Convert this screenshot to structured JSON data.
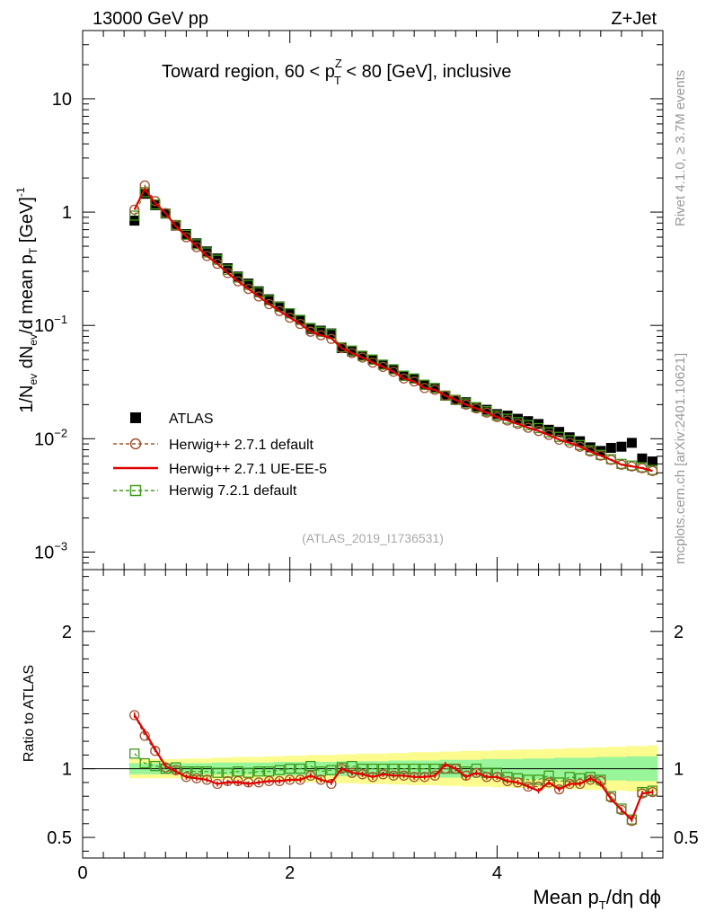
{
  "header": {
    "left": "13000 GeV pp",
    "right": "Z+Jet"
  },
  "plot_title": {
    "prefix": "Toward region, 60 < p",
    "sup": "Z",
    "sub": "T",
    "suffix": " < 80 [GeV], inclusive"
  },
  "ylabel_main": {
    "t1": "1/N",
    "s1": "ev",
    "t2": " dN",
    "s2": "ev",
    "t3": "/d mean p",
    "s3": "T",
    "t4": " [GeV]",
    "sup": "-1"
  },
  "ylabel_ratio": "Ratio to ATLAS",
  "xlabel": {
    "t1": "Mean p",
    "s1": "T",
    "t2": "/dη dϕ"
  },
  "side_labels": {
    "rivet": "Rivet 4.1.0, ≥ 3.7M events",
    "mcplots": "mcplots.cern.ch [arXiv:2401.10621]"
  },
  "watermark": "(ATLAS_2019_I1736531)",
  "colors": {
    "atlas": "#000000",
    "herwig271": "#a0522d",
    "ueee5": "#e00000",
    "herwig721": "#3c9a1a",
    "band_inner": "#99f599",
    "band_outer": "#fbfb8e"
  },
  "chart_data": {
    "type": "line",
    "main": {
      "yscale": "log",
      "xlim": [
        0,
        5.6
      ],
      "ylim": [
        0.0007,
        40
      ],
      "x_ticks": [
        0,
        2,
        4
      ],
      "x_tick_labels": [
        "0",
        "2",
        "4"
      ],
      "y_tick_labels": [
        {
          "base": "10",
          "exp": "",
          "value": 10
        },
        {
          "base": "1",
          "exp": "",
          "value": 1
        },
        {
          "base": "10",
          "exp": "−1",
          "value": 0.1
        },
        {
          "base": "10",
          "exp": "−2",
          "value": 0.01
        },
        {
          "base": "10",
          "exp": "−3",
          "value": 0.001
        }
      ],
      "x": [
        0.5,
        0.6,
        0.7,
        0.8,
        0.9,
        1.0,
        1.1,
        1.2,
        1.3,
        1.4,
        1.5,
        1.6,
        1.7,
        1.8,
        1.9,
        2.0,
        2.1,
        2.2,
        2.3,
        2.4,
        2.5,
        2.6,
        2.7,
        2.8,
        2.9,
        3.0,
        3.1,
        3.2,
        3.3,
        3.4,
        3.5,
        3.6,
        3.7,
        3.8,
        3.9,
        4.0,
        4.1,
        4.2,
        4.3,
        4.4,
        4.5,
        4.6,
        4.7,
        4.8,
        4.9,
        5.0,
        5.1,
        5.2,
        5.3,
        5.4,
        5.5
      ],
      "series": [
        {
          "name": "ATLAS",
          "style": "marker-square-filled",
          "values": [
            0.84,
            1.45,
            1.15,
            0.97,
            0.76,
            0.64,
            0.53,
            0.45,
            0.39,
            0.32,
            0.27,
            0.234,
            0.2,
            0.17,
            0.147,
            0.128,
            0.112,
            0.093,
            0.09,
            0.085,
            0.063,
            0.059,
            0.054,
            0.05,
            0.045,
            0.041,
            0.036,
            0.034,
            0.03,
            0.028,
            0.024,
            0.022,
            0.021,
            0.019,
            0.018,
            0.0165,
            0.016,
            0.015,
            0.0143,
            0.0135,
            0.012,
            0.0115,
            0.0103,
            0.0095,
            0.0084,
            0.0078,
            0.0083,
            0.0085,
            0.0092,
            0.0067,
            0.0063
          ]
        },
        {
          "name": "Herwig++ 2.7.1 default",
          "style": "marker-circle-open-dashed",
          "values": [
            1.05,
            1.72,
            1.25,
            0.98,
            0.76,
            0.6,
            0.49,
            0.41,
            0.35,
            0.29,
            0.245,
            0.21,
            0.18,
            0.154,
            0.134,
            0.117,
            0.103,
            0.088,
            0.082,
            0.076,
            0.063,
            0.057,
            0.052,
            0.047,
            0.043,
            0.039,
            0.034,
            0.032,
            0.028,
            0.027,
            0.024,
            0.022,
            0.02,
            0.0185,
            0.017,
            0.0155,
            0.0145,
            0.0135,
            0.0125,
            0.0117,
            0.0108,
            0.0098,
            0.0092,
            0.0085,
            0.0077,
            0.0071,
            0.0065,
            0.0059,
            0.0057,
            0.0055,
            0.0052
          ]
        },
        {
          "name": "Herwig++ 2.7.1 UE-EE-5",
          "style": "solid-line",
          "values": [
            1.05,
            1.6,
            1.2,
            0.98,
            0.75,
            0.61,
            0.5,
            0.41,
            0.35,
            0.29,
            0.245,
            0.21,
            0.18,
            0.154,
            0.134,
            0.117,
            0.103,
            0.088,
            0.082,
            0.077,
            0.063,
            0.057,
            0.052,
            0.047,
            0.043,
            0.039,
            0.034,
            0.032,
            0.028,
            0.027,
            0.024,
            0.022,
            0.02,
            0.0185,
            0.017,
            0.0155,
            0.0145,
            0.0135,
            0.0125,
            0.0117,
            0.0108,
            0.0098,
            0.0092,
            0.0085,
            0.0077,
            0.0071,
            0.0065,
            0.0059,
            0.0057,
            0.0055,
            0.0052
          ]
        },
        {
          "name": "Herwig 7.2.1 default",
          "style": "marker-square-open-dashed",
          "values": [
            0.93,
            1.5,
            1.17,
            0.97,
            0.77,
            0.63,
            0.52,
            0.44,
            0.38,
            0.31,
            0.265,
            0.228,
            0.196,
            0.167,
            0.146,
            0.128,
            0.112,
            0.095,
            0.088,
            0.084,
            0.064,
            0.06,
            0.054,
            0.05,
            0.045,
            0.041,
            0.036,
            0.034,
            0.03,
            0.028,
            0.024,
            0.022,
            0.0205,
            0.019,
            0.0175,
            0.016,
            0.015,
            0.014,
            0.0132,
            0.0124,
            0.0114,
            0.0104,
            0.0097,
            0.0088,
            0.0079,
            0.0072,
            0.0066,
            0.006,
            0.0058,
            0.0056,
            0.0053
          ]
        }
      ]
    },
    "ratio": {
      "ylim": [
        0.35,
        2.45
      ],
      "y_ticks": [
        0.5,
        1,
        2
      ],
      "y_tick_labels": [
        "0.5",
        "1",
        "2"
      ],
      "band_inner_halfwidth": [
        0.04,
        0.04,
        0.04,
        0.04,
        0.04,
        0.04,
        0.04,
        0.04,
        0.045,
        0.045,
        0.045,
        0.045,
        0.045,
        0.045,
        0.05,
        0.05,
        0.05,
        0.05,
        0.05,
        0.05,
        0.055,
        0.055,
        0.055,
        0.055,
        0.055,
        0.06,
        0.06,
        0.06,
        0.06,
        0.06,
        0.065,
        0.065,
        0.065,
        0.065,
        0.07,
        0.07,
        0.07,
        0.07,
        0.075,
        0.075,
        0.075,
        0.08,
        0.08,
        0.08,
        0.08,
        0.085,
        0.085,
        0.085,
        0.09,
        0.09,
        0.09
      ],
      "band_outer_halfwidth": [
        0.07,
        0.07,
        0.07,
        0.07,
        0.07,
        0.075,
        0.075,
        0.075,
        0.08,
        0.08,
        0.085,
        0.085,
        0.085,
        0.09,
        0.09,
        0.095,
        0.095,
        0.1,
        0.1,
        0.1,
        0.105,
        0.105,
        0.11,
        0.11,
        0.11,
        0.115,
        0.115,
        0.12,
        0.12,
        0.12,
        0.125,
        0.125,
        0.13,
        0.13,
        0.13,
        0.135,
        0.135,
        0.14,
        0.14,
        0.14,
        0.145,
        0.145,
        0.15,
        0.15,
        0.155,
        0.155,
        0.16,
        0.16,
        0.165,
        0.165,
        0.17
      ],
      "series": [
        {
          "name": "Herwig++ 2.7.1 default",
          "values": [
            1.39,
            1.24,
            1.13,
            1.01,
            0.99,
            0.94,
            0.93,
            0.92,
            0.89,
            0.91,
            0.91,
            0.9,
            0.9,
            0.91,
            0.91,
            0.92,
            0.92,
            0.95,
            0.92,
            0.89,
            1.0,
            0.97,
            0.96,
            0.94,
            0.96,
            0.95,
            0.95,
            0.94,
            0.94,
            0.95,
            1.0,
            1.0,
            0.95,
            0.97,
            0.94,
            0.94,
            0.91,
            0.9,
            0.87,
            0.87,
            0.9,
            0.85,
            0.89,
            0.89,
            0.92,
            0.91,
            0.79,
            0.7,
            0.62,
            0.82,
            0.83
          ]
        },
        {
          "name": "Herwig++ 2.7.1 UE-EE-5",
          "values": [
            1.39,
            1.27,
            1.14,
            1.02,
            0.98,
            0.94,
            0.93,
            0.92,
            0.89,
            0.9,
            0.9,
            0.89,
            0.9,
            0.91,
            0.91,
            0.92,
            0.92,
            0.95,
            0.92,
            0.9,
            1.0,
            0.97,
            0.96,
            0.94,
            0.96,
            0.95,
            0.95,
            0.94,
            0.94,
            0.95,
            1.03,
            1.0,
            0.94,
            0.97,
            0.94,
            0.94,
            0.91,
            0.9,
            0.87,
            0.84,
            0.9,
            0.85,
            0.89,
            0.89,
            0.93,
            0.89,
            0.78,
            0.7,
            0.63,
            0.82,
            0.83
          ]
        },
        {
          "name": "Herwig 7.2.1 default",
          "values": [
            1.11,
            1.04,
            1.02,
            1.0,
            1.01,
            0.98,
            0.98,
            0.98,
            0.97,
            0.97,
            0.98,
            0.97,
            0.98,
            0.98,
            0.99,
            1.0,
            1.0,
            1.02,
            0.98,
            0.99,
            1.01,
            1.02,
            1.0,
            1.0,
            1.0,
            1.0,
            1.0,
            1.0,
            1.0,
            1.0,
            1.0,
            1.0,
            0.98,
            1.0,
            0.97,
            0.97,
            0.94,
            0.93,
            0.92,
            0.92,
            0.95,
            0.9,
            0.94,
            0.93,
            0.94,
            0.92,
            0.8,
            0.71,
            0.63,
            0.83,
            0.84
          ]
        }
      ]
    },
    "legend": {
      "placement": "lower-left",
      "entries": [
        "ATLAS",
        "Herwig++ 2.7.1 default",
        "Herwig++ 2.7.1 UE-EE-5",
        "Herwig 7.2.1 default"
      ]
    }
  }
}
